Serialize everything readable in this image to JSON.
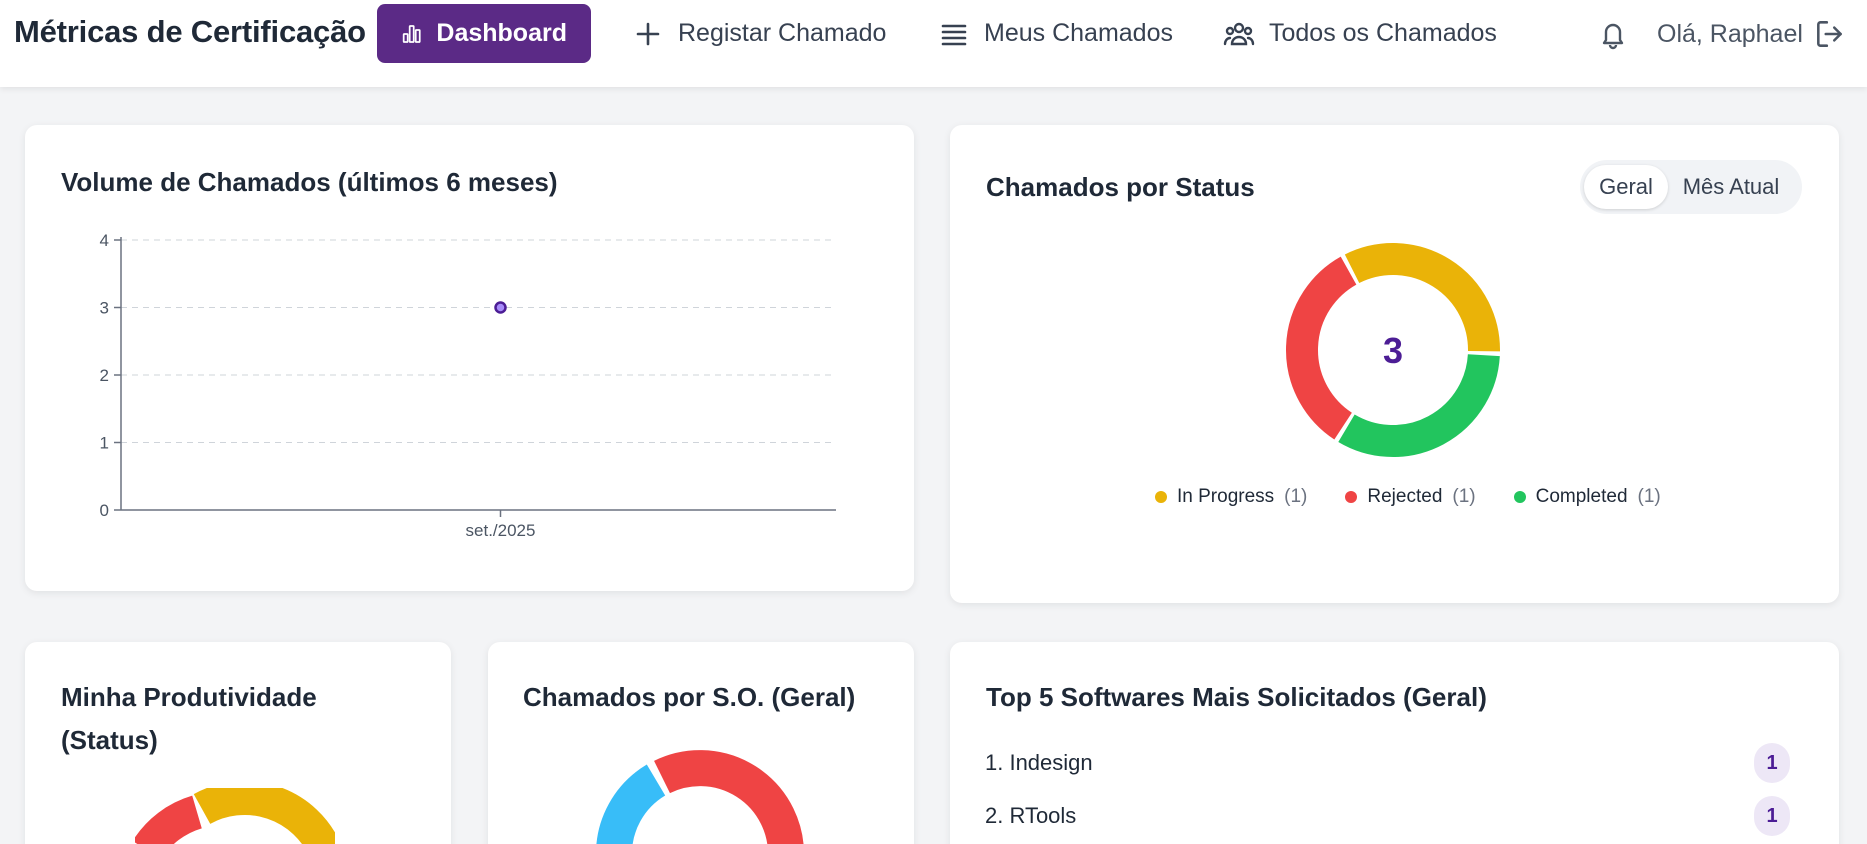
{
  "header": {
    "brand": "Métricas de Certificação",
    "nav": [
      {
        "label": "Dashboard",
        "icon": "bar-chart-icon",
        "active": true
      },
      {
        "label": "Registar Chamado",
        "icon": "plus-icon"
      },
      {
        "label": "Meus Chamados",
        "icon": "list-icon"
      },
      {
        "label": "Todos os Chamados",
        "icon": "users-icon"
      }
    ],
    "greeting": "Olá, Raphael",
    "bell_icon": "bell-icon",
    "logout_icon": "logout-icon"
  },
  "volume_card": {
    "title": "Volume de Chamados (últimos 6 meses)"
  },
  "status_card": {
    "title": "Chamados por Status",
    "toggle": {
      "geral": "Geral",
      "mes_atual": "Mês Atual",
      "selected": "Geral"
    },
    "total": "3",
    "legend": [
      {
        "label": "In Progress",
        "count": "(1)",
        "color": "#eab308"
      },
      {
        "label": "Rejected",
        "count": "(1)",
        "color": "#ef4444"
      },
      {
        "label": "Completed",
        "count": "(1)",
        "color": "#22c55e"
      }
    ]
  },
  "produtividade_card": {
    "title_line1": "Minha Produtividade",
    "title_line2": "(Status)"
  },
  "so_card": {
    "title": "Chamados por S.O. (Geral)"
  },
  "top_software_card": {
    "title": "Top 5 Softwares Mais Solicitados (Geral)",
    "items": [
      {
        "label": "1. Indesign",
        "count": "1"
      },
      {
        "label": "2. RTools",
        "count": "1"
      }
    ]
  },
  "chart_data": [
    {
      "type": "line",
      "title": "Volume de Chamados (últimos 6 meses)",
      "categories": [
        "set./2025"
      ],
      "x": [
        "set./2025"
      ],
      "values": [
        3
      ],
      "ylim": [
        0,
        4
      ],
      "yticks": [
        "0",
        "1",
        "2",
        "3",
        "4"
      ],
      "grid": true,
      "color": "#5b2a86"
    },
    {
      "type": "pie",
      "title": "Chamados por Status",
      "categories": [
        "In Progress",
        "Rejected",
        "Completed"
      ],
      "values": [
        1,
        1,
        1
      ],
      "colors": [
        "#eab308",
        "#ef4444",
        "#22c55e"
      ],
      "center_label": "3",
      "legend": "bottom"
    }
  ]
}
